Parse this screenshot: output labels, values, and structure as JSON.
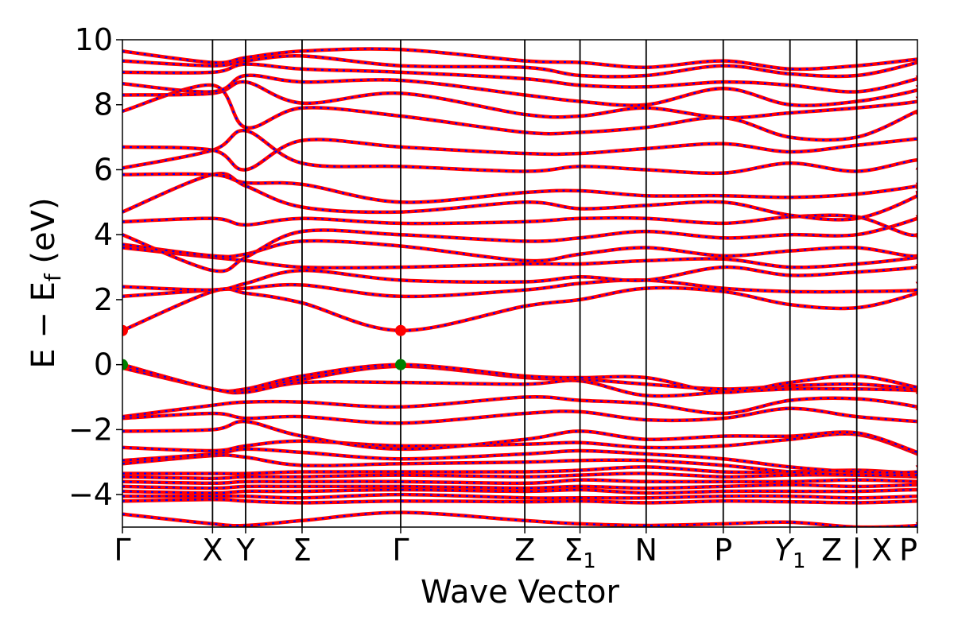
{
  "chart_data": {
    "type": "line",
    "xlabel": "Wave Vector",
    "ylabel_parts": {
      "main": "E − E",
      "sub": "f",
      "unit": " (eV)"
    },
    "ylim": [
      -5,
      10
    ],
    "yticks": [
      10,
      8,
      6,
      4,
      2,
      0,
      -2,
      -4
    ],
    "ytick_labels": [
      "10",
      "8",
      "6",
      "4",
      "2",
      "0",
      "−2",
      "−4"
    ],
    "kpath": [
      {
        "label": "Γ",
        "x": 0
      },
      {
        "label": "X",
        "x": 1.485
      },
      {
        "label": "Y",
        "x": 2.03
      },
      {
        "label": "Σ",
        "x": 2.96
      },
      {
        "label": "Γ",
        "x": 4.585
      },
      {
        "label": "Z",
        "x": 6.63
      },
      {
        "label": "Σ",
        "sub": "1",
        "x": 7.54
      },
      {
        "label": "N",
        "x": 8.63
      },
      {
        "label": "P",
        "x": 9.9
      },
      {
        "label": "Y",
        "sub": "1",
        "italic": true,
        "x": 11.0
      },
      {
        "label": "Z | X",
        "x": 12.1
      },
      {
        "label": "P",
        "x": 13.1
      }
    ],
    "xlim": [
      0,
      13.1
    ],
    "colors": {
      "band_solid": "#ff0000",
      "band_dashed": "#0000ff",
      "vbm_marker": "#008000",
      "cbm_marker": "#ff0000",
      "frame": "#000000"
    },
    "markers": [
      {
        "kind": "vbm",
        "x": 0,
        "y": 0
      },
      {
        "kind": "cbm",
        "x": 0,
        "y": 1.05
      },
      {
        "kind": "vbm",
        "x": 4.585,
        "y": 0
      },
      {
        "kind": "cbm",
        "x": 4.585,
        "y": 1.05
      }
    ],
    "bands": [
      [
        -4.6,
        -4.9,
        -4.95,
        -4.8,
        -4.55,
        -4.8,
        -4.9,
        -4.95,
        -4.9,
        -4.85,
        -5.0,
        -4.95,
        -4.85
      ],
      [
        -4.2,
        -4.15,
        -4.2,
        -4.25,
        -4.2,
        -4.22,
        -4.2,
        -4.25,
        -4.2,
        -4.22,
        -4.25,
        -4.2,
        -4.22
      ],
      [
        -4.05,
        -4.05,
        -4.05,
        -4.1,
        -4.0,
        -4.1,
        -4.1,
        -4.1,
        -4.05,
        -4.05,
        -4.1,
        -4.05,
        -4.05
      ],
      [
        -3.9,
        -3.95,
        -3.9,
        -3.9,
        -3.85,
        -3.9,
        -3.85,
        -3.95,
        -3.9,
        -3.9,
        -3.9,
        -3.85,
        -3.9
      ],
      [
        -3.75,
        -3.8,
        -3.75,
        -3.75,
        -3.75,
        -3.8,
        -3.75,
        -3.8,
        -3.75,
        -3.7,
        -3.75,
        -3.7,
        -3.75
      ],
      [
        -3.6,
        -3.65,
        -3.6,
        -3.6,
        -3.6,
        -3.65,
        -3.55,
        -3.6,
        -3.6,
        -3.6,
        -3.55,
        -3.6,
        -3.6
      ],
      [
        -3.45,
        -3.5,
        -3.45,
        -3.45,
        -3.4,
        -3.45,
        -3.4,
        -3.35,
        -3.45,
        -3.4,
        -3.4,
        -3.45,
        -3.45
      ],
      [
        -3.35,
        -3.35,
        -3.35,
        -3.3,
        -3.3,
        -3.3,
        -3.25,
        -3.15,
        -3.3,
        -3.3,
        -3.25,
        -3.35,
        -3.35
      ],
      [
        -3.05,
        -2.8,
        -2.85,
        -3.1,
        -3.05,
        -3.0,
        -2.95,
        -2.95,
        -3.1,
        -3.3,
        -3.4,
        -3.4,
        -3.4
      ],
      [
        -2.95,
        -2.75,
        -2.6,
        -2.7,
        -2.9,
        -2.75,
        -2.65,
        -2.75,
        -2.9,
        -3.15,
        -3.3,
        -3.3,
        -3.1
      ],
      [
        -2.55,
        -2.65,
        -2.5,
        -2.35,
        -2.5,
        -2.45,
        -2.4,
        -2.55,
        -2.5,
        -2.3,
        -2.15,
        -2.75,
        -2.8
      ],
      [
        -2.05,
        -2.0,
        -1.75,
        -2.2,
        -2.6,
        -2.3,
        -2.05,
        -2.3,
        -2.2,
        -2.2,
        -2.1,
        -2.7,
        -2.7
      ],
      [
        -1.65,
        -1.5,
        -1.65,
        -1.6,
        -1.8,
        -1.5,
        -1.45,
        -1.7,
        -1.65,
        -1.35,
        -1.6,
        -1.75,
        -1.75
      ],
      [
        -1.6,
        -1.25,
        -1.15,
        -1.15,
        -1.3,
        -1.0,
        -1.1,
        -1.2,
        -1.5,
        -1.1,
        -1.05,
        -1.3,
        -1.4
      ],
      [
        -0.1,
        -0.75,
        -0.85,
        -0.55,
        -0.55,
        -0.6,
        -0.5,
        -0.95,
        -0.85,
        -0.75,
        -0.75,
        -0.8,
        -0.9
      ],
      [
        0.0,
        -0.75,
        -0.75,
        -0.45,
        -0.05,
        -0.4,
        -0.45,
        -0.6,
        -0.75,
        -0.65,
        -0.6,
        -0.75,
        -0.75
      ],
      [
        0.0,
        -0.75,
        -0.75,
        -0.35,
        0.0,
        -0.35,
        -0.4,
        -0.4,
        -0.85,
        -0.55,
        -0.35,
        -0.7,
        -0.7
      ],
      [
        1.05,
        2.25,
        2.2,
        1.9,
        1.05,
        1.8,
        2.0,
        2.35,
        2.25,
        1.85,
        1.75,
        2.2,
        2.3
      ],
      [
        2.1,
        2.3,
        2.35,
        2.45,
        2.1,
        2.3,
        2.5,
        2.6,
        2.35,
        2.25,
        2.25,
        2.3,
        2.55
      ],
      [
        2.4,
        2.3,
        2.5,
        2.9,
        2.6,
        2.55,
        2.7,
        2.6,
        3.0,
        2.75,
        2.85,
        3.0,
        3.1
      ],
      [
        3.6,
        3.3,
        3.2,
        3.0,
        3.0,
        3.1,
        3.1,
        3.2,
        3.25,
        3.0,
        3.1,
        3.3,
        3.35
      ],
      [
        3.7,
        3.35,
        3.4,
        3.8,
        3.65,
        3.2,
        3.4,
        3.6,
        3.35,
        3.5,
        3.6,
        3.35,
        4.0
      ],
      [
        4.0,
        2.9,
        3.3,
        4.1,
        4.0,
        3.8,
        3.9,
        4.1,
        3.9,
        4.0,
        4.0,
        4.5,
        4.6
      ],
      [
        4.4,
        4.5,
        4.3,
        4.5,
        4.35,
        4.4,
        4.5,
        4.5,
        4.35,
        4.55,
        4.55,
        4.0,
        5.35
      ],
      [
        4.7,
        5.85,
        5.5,
        4.85,
        4.7,
        5.0,
        4.8,
        4.9,
        5.0,
        4.6,
        4.5,
        5.2,
        5.45
      ],
      [
        5.85,
        5.85,
        5.6,
        5.55,
        5.0,
        5.3,
        5.35,
        5.2,
        5.2,
        5.15,
        5.25,
        5.5,
        5.6
      ],
      [
        6.05,
        6.6,
        7.2,
        6.2,
        6.1,
        5.95,
        6.1,
        6.0,
        5.9,
        6.2,
        5.95,
        6.3,
        6.0
      ],
      [
        6.7,
        6.6,
        6.0,
        6.9,
        6.7,
        6.5,
        6.5,
        6.65,
        6.8,
        6.55,
        6.75,
        6.95,
        6.9
      ],
      [
        7.8,
        8.6,
        7.3,
        7.9,
        7.65,
        7.15,
        7.15,
        7.3,
        7.6,
        7.0,
        7.0,
        7.8,
        7.7
      ],
      [
        8.3,
        8.35,
        8.7,
        8.05,
        8.35,
        7.7,
        7.65,
        7.9,
        7.6,
        7.75,
        7.9,
        8.1,
        8.25
      ],
      [
        8.65,
        8.4,
        8.9,
        8.7,
        8.75,
        8.3,
        8.1,
        8.0,
        8.5,
        8.0,
        8.1,
        8.45,
        8.6
      ],
      [
        9.0,
        9.0,
        9.25,
        9.1,
        9.0,
        8.8,
        8.6,
        8.55,
        8.7,
        8.6,
        8.4,
        8.8,
        8.9
      ],
      [
        9.35,
        9.2,
        9.35,
        9.5,
        9.2,
        9.15,
        8.9,
        8.9,
        9.2,
        8.95,
        8.9,
        9.3,
        9.35
      ],
      [
        9.65,
        9.3,
        9.45,
        9.65,
        9.7,
        9.35,
        9.3,
        9.15,
        9.35,
        9.1,
        9.2,
        9.4,
        9.4
      ]
    ]
  }
}
